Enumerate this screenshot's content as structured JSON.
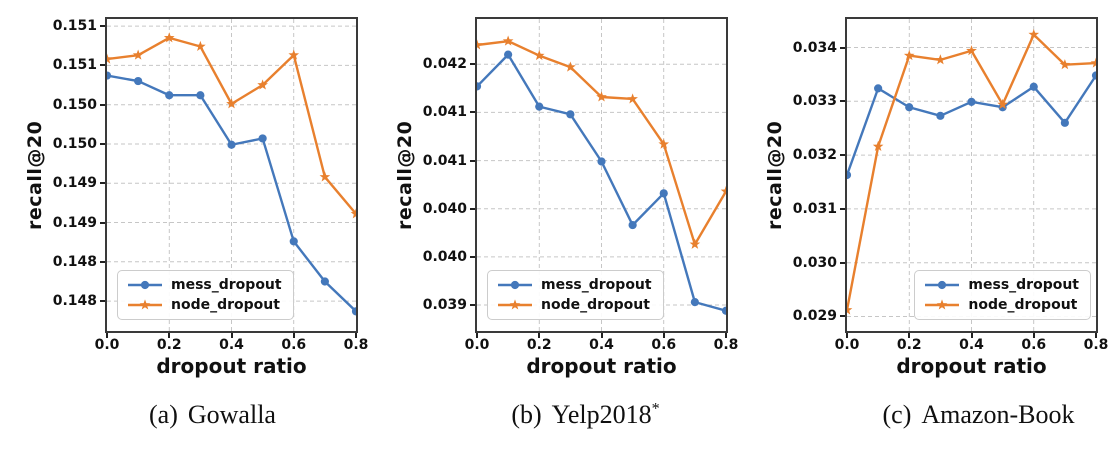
{
  "chart_data": [
    {
      "type": "line",
      "caption_index": "(a)",
      "title": "Gowalla",
      "title_sup": "",
      "xlabel": "dropout ratio",
      "ylabel": "recall@20",
      "x": [
        0.0,
        0.1,
        0.2,
        0.3,
        0.4,
        0.5,
        0.6,
        0.7,
        0.8
      ],
      "xlim": [
        0.0,
        0.8
      ],
      "xtick_values": [
        0.0,
        0.2,
        0.4,
        0.6,
        0.8
      ],
      "xtick_labels": [
        "0.0",
        "0.2",
        "0.4",
        "0.6",
        "0.8"
      ],
      "ylim": [
        0.14712,
        0.15109
      ],
      "ytick_values": [
        0.1475,
        0.148,
        0.1485,
        0.149,
        0.1495,
        0.15,
        0.1505,
        0.151
      ],
      "ytick_labels": [
        "0.148",
        "0.148",
        "0.149",
        "0.149",
        "0.150",
        "0.150",
        "0.151",
        "0.151"
      ],
      "grid": true,
      "legend_position": "lower-left",
      "series": [
        {
          "name": "mess_dropout",
          "marker": "circle",
          "color": "#4478bb",
          "values": [
            0.15037,
            0.1503,
            0.15012,
            0.15012,
            0.14949,
            0.14957,
            0.14826,
            0.14775,
            0.14737
          ]
        },
        {
          "name": "node_dropout",
          "marker": "star",
          "color": "#e8802e",
          "values": [
            0.15058,
            0.15063,
            0.15085,
            0.15074,
            0.15001,
            0.15025,
            0.15063,
            0.14908,
            0.14861
          ]
        }
      ]
    },
    {
      "type": "line",
      "caption_index": "(b)",
      "title": "Yelp2018",
      "title_sup": "*",
      "xlabel": "dropout ratio",
      "ylabel": "recall@20",
      "x": [
        0.0,
        0.1,
        0.2,
        0.3,
        0.4,
        0.5,
        0.6,
        0.7,
        0.8
      ],
      "xlim": [
        0.0,
        0.8
      ],
      "xtick_values": [
        0.0,
        0.2,
        0.4,
        0.6,
        0.8
      ],
      "xtick_labels": [
        "0.0",
        "0.2",
        "0.4",
        "0.6",
        "0.8"
      ],
      "ylim": [
        0.03923,
        0.04247
      ],
      "ytick_values": [
        0.0395,
        0.04,
        0.0405,
        0.041,
        0.0415,
        0.042
      ],
      "ytick_labels": [
        "0.039",
        "0.040",
        "0.040",
        "0.041",
        "0.041",
        "0.042"
      ],
      "grid": true,
      "legend_position": "lower-left",
      "series": [
        {
          "name": "mess_dropout",
          "marker": "circle",
          "color": "#4478bb",
          "values": [
            0.04177,
            0.0421,
            0.04156,
            0.04148,
            0.04099,
            0.04033,
            0.04066,
            0.03953,
            0.03944
          ]
        },
        {
          "name": "node_dropout",
          "marker": "star",
          "color": "#e8802e",
          "values": [
            0.0422,
            0.04224,
            0.04209,
            0.04197,
            0.04166,
            0.04164,
            0.04117,
            0.04013,
            0.04068
          ]
        }
      ]
    },
    {
      "type": "line",
      "caption_index": "(c)",
      "title": "Amazon-Book",
      "title_sup": "",
      "xlabel": "dropout ratio",
      "ylabel": "recall@20",
      "x": [
        0.0,
        0.1,
        0.2,
        0.3,
        0.4,
        0.5,
        0.6,
        0.7,
        0.8
      ],
      "xlim": [
        0.0,
        0.8
      ],
      "xtick_values": [
        0.0,
        0.2,
        0.4,
        0.6,
        0.8
      ],
      "xtick_labels": [
        "0.0",
        "0.2",
        "0.4",
        "0.6",
        "0.8"
      ],
      "ylim": [
        0.02873,
        0.03453
      ],
      "ytick_values": [
        0.029,
        0.03,
        0.031,
        0.032,
        0.033,
        0.034
      ],
      "ytick_labels": [
        "0.029",
        "0.030",
        "0.031",
        "0.032",
        "0.033",
        "0.034"
      ],
      "grid": true,
      "legend_position": "lower-right",
      "series": [
        {
          "name": "mess_dropout",
          "marker": "circle",
          "color": "#4478bb",
          "values": [
            0.03163,
            0.03324,
            0.03289,
            0.03273,
            0.03299,
            0.03289,
            0.03327,
            0.0326,
            0.03348
          ]
        },
        {
          "name": "node_dropout",
          "marker": "star",
          "color": "#e8802e",
          "values": [
            0.02912,
            0.03216,
            0.03385,
            0.03377,
            0.03394,
            0.03294,
            0.03424,
            0.03368,
            0.03371
          ]
        }
      ]
    }
  ]
}
